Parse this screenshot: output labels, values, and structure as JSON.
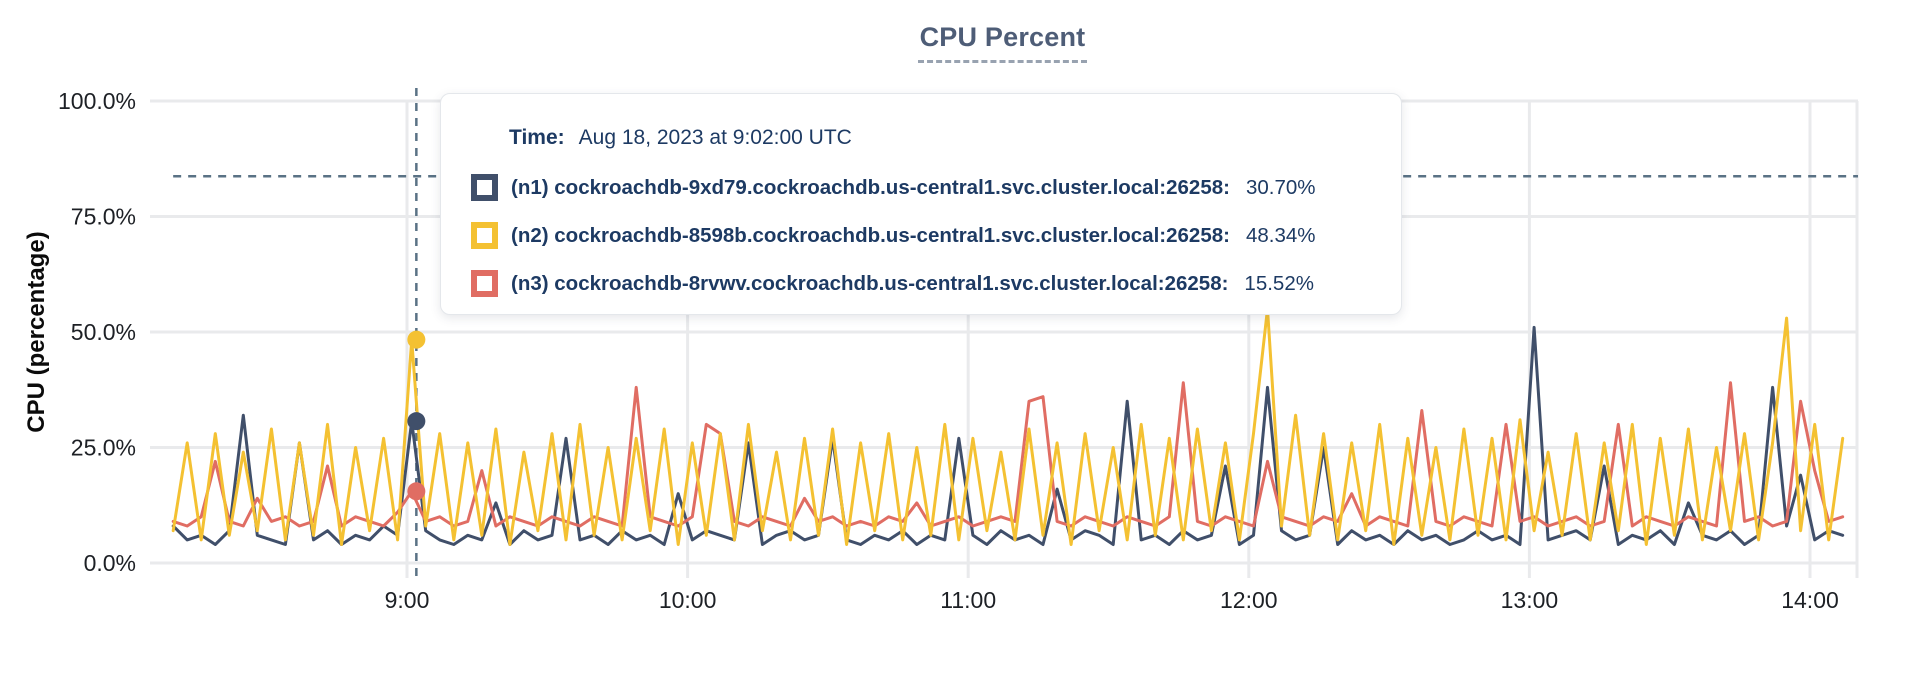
{
  "title": "CPU Percent",
  "tooltip": {
    "time_label": "Time:",
    "time_value": "Aug 18, 2023 at 9:02:00 UTC",
    "rows": [
      {
        "node": "(n1) cockroachdb-9xd79.cockroachdb.us-central1.svc.cluster.local:26258:",
        "value": "30.70%",
        "color": "#404f6a"
      },
      {
        "node": "(n2) cockroachdb-8598b.cockroachdb.us-central1.svc.cluster.local:26258:",
        "value": "48.34%",
        "color": "#f4c132"
      },
      {
        "node": "(n3) cockroachdb-8rvwv.cockroachdb.us-central1.svc.cluster.local:26258:",
        "value": "15.52%",
        "color": "#e06d63"
      }
    ]
  },
  "chart_data": {
    "type": "line",
    "title": "CPU Percent",
    "xlabel": "",
    "ylabel": "CPU (percentage)",
    "ylim": [
      0,
      100
    ],
    "grid": true,
    "legend_position": "tooltip-overlay",
    "y_ticks": [
      {
        "label": "0.0%",
        "value": 0
      },
      {
        "label": "25.0%",
        "value": 25
      },
      {
        "label": "50.0%",
        "value": 50
      },
      {
        "label": "75.0%",
        "value": 75
      },
      {
        "label": "100.0%",
        "value": 100
      }
    ],
    "x_ticks": [
      {
        "label": "9:00",
        "min": 0
      },
      {
        "label": "10:00",
        "min": 60
      },
      {
        "label": "11:00",
        "min": 120
      },
      {
        "label": "12:00",
        "min": 180
      },
      {
        "label": "13:00",
        "min": 240
      },
      {
        "label": "14:00",
        "min": 300
      }
    ],
    "x_start_min": -50,
    "x_step_min": 3,
    "hover": {
      "time_label": "Aug 18, 2023 at 9:02:00 UTC",
      "time_min": 2,
      "crosshair_pct": 83.7,
      "dot_values": [
        30.7,
        48.34,
        15.52
      ]
    },
    "series": [
      {
        "name": "(n1) cockroachdb-9xd79.cockroachdb.us-central1.svc.cluster.local:26258",
        "color": "#404f6a",
        "values": [
          8,
          5,
          6,
          4,
          7,
          32,
          6,
          5,
          4,
          26,
          5,
          7,
          4,
          6,
          5,
          8,
          6,
          30.7,
          7,
          5,
          4,
          6,
          5,
          13,
          4,
          7,
          5,
          6,
          27,
          5,
          6,
          4,
          7,
          5,
          6,
          4,
          15,
          5,
          7,
          6,
          5,
          26,
          4,
          6,
          7,
          5,
          6,
          27,
          5,
          4,
          6,
          5,
          7,
          4,
          6,
          5,
          27,
          6,
          4,
          7,
          5,
          6,
          4,
          16,
          5,
          7,
          6,
          4,
          35,
          5,
          6,
          4,
          7,
          5,
          6,
          21,
          4,
          6,
          38,
          7,
          5,
          6,
          25,
          4,
          7,
          5,
          6,
          4,
          7,
          5,
          6,
          4,
          5,
          7,
          5,
          6,
          4,
          51,
          5,
          6,
          7,
          5,
          21,
          4,
          6,
          5,
          7,
          4,
          13,
          6,
          5,
          7,
          4,
          6,
          38,
          8,
          19,
          5,
          7,
          6
        ]
      },
      {
        "name": "(n2) cockroachdb-8598b.cockroachdb.us-central1.svc.cluster.local:26258",
        "color": "#f4c132",
        "values": [
          7,
          26,
          5,
          28,
          6,
          24,
          7,
          29,
          5,
          26,
          6,
          30,
          4,
          25,
          7,
          27,
          5,
          48.3,
          8,
          28,
          5,
          26,
          6,
          29,
          4,
          24,
          7,
          28,
          5,
          30,
          6,
          25,
          5,
          27,
          7,
          29,
          4,
          26,
          6,
          28,
          5,
          30,
          7,
          24,
          5,
          27,
          6,
          29,
          4,
          26,
          7,
          28,
          5,
          25,
          6,
          30,
          5,
          27,
          7,
          24,
          5,
          29,
          6,
          26,
          4,
          28,
          7,
          25,
          5,
          30,
          6,
          27,
          5,
          29,
          7,
          26,
          5,
          28,
          55,
          8,
          32,
          6,
          28,
          5,
          26,
          7,
          30,
          4,
          27,
          6,
          25,
          5,
          29,
          6,
          27,
          5,
          31,
          7,
          24,
          6,
          28,
          5,
          26,
          7,
          30,
          4,
          27,
          6,
          29,
          5,
          25,
          7,
          28,
          5,
          26,
          53,
          7,
          30,
          5,
          27
        ]
      },
      {
        "name": "(n3) cockroachdb-8rvwv.cockroachdb.us-central1.svc.cluster.local:26258",
        "color": "#e06d63",
        "values": [
          9,
          8,
          10,
          22,
          9,
          8,
          14,
          9,
          10,
          8,
          9,
          21,
          8,
          10,
          9,
          8,
          11,
          15.5,
          9,
          10,
          8,
          9,
          20,
          8,
          10,
          9,
          8,
          10,
          9,
          8,
          10,
          9,
          8,
          38,
          10,
          9,
          8,
          10,
          30,
          28,
          9,
          8,
          10,
          9,
          8,
          14,
          9,
          10,
          8,
          9,
          8,
          10,
          9,
          13,
          8,
          9,
          10,
          8,
          9,
          10,
          9,
          35,
          36,
          9,
          8,
          10,
          9,
          8,
          10,
          9,
          8,
          10,
          39,
          9,
          8,
          10,
          9,
          8,
          22,
          10,
          9,
          8,
          10,
          9,
          15,
          8,
          10,
          9,
          8,
          33,
          9,
          8,
          10,
          9,
          8,
          30,
          9,
          10,
          8,
          9,
          10,
          8,
          9,
          30,
          8,
          10,
          9,
          8,
          10,
          9,
          8,
          39,
          9,
          10,
          8,
          9,
          35,
          20,
          9,
          10
        ]
      }
    ]
  }
}
